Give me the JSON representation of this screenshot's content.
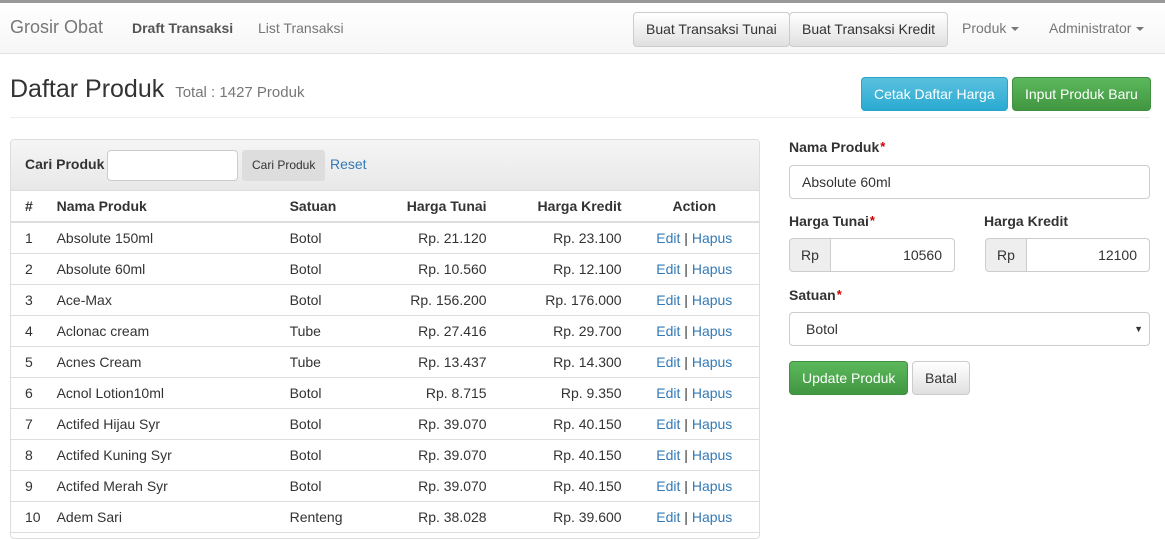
{
  "nav": {
    "brand": "Grosir Obat",
    "links": [
      "Draft Transaksi",
      "List Transaksi"
    ],
    "buttons": [
      "Buat Transaksi Tunai",
      "Buat Transaksi Kredit"
    ],
    "dropdowns": [
      "Produk",
      "Administrator"
    ]
  },
  "page": {
    "title": "Daftar Produk",
    "subtitle": "Total : 1427 Produk",
    "print_button": "Cetak Daftar Harga",
    "new_button": "Input Produk Baru"
  },
  "search": {
    "label": "Cari Produk",
    "value": "",
    "button": "Cari Produk",
    "reset": "Reset"
  },
  "table": {
    "headers": [
      "#",
      "Nama Produk",
      "Satuan",
      "Harga Tunai",
      "Harga Kredit",
      "Action"
    ],
    "edit_label": "Edit",
    "sep": "|",
    "delete_label": "Hapus",
    "rows": [
      [
        "1",
        "Absolute 150ml",
        "Botol",
        "Rp. 21.120",
        "Rp. 23.100"
      ],
      [
        "2",
        "Absolute 60ml",
        "Botol",
        "Rp. 10.560",
        "Rp. 12.100"
      ],
      [
        "3",
        "Ace-Max",
        "Botol",
        "Rp. 156.200",
        "Rp. 176.000"
      ],
      [
        "4",
        "Aclonac cream",
        "Tube",
        "Rp. 27.416",
        "Rp. 29.700"
      ],
      [
        "5",
        "Acnes Cream",
        "Tube",
        "Rp. 13.437",
        "Rp. 14.300"
      ],
      [
        "6",
        "Acnol Lotion10ml",
        "Botol",
        "Rp. 8.715",
        "Rp. 9.350"
      ],
      [
        "7",
        "Actifed Hijau Syr",
        "Botol",
        "Rp. 39.070",
        "Rp. 40.150"
      ],
      [
        "8",
        "Actifed Kuning Syr",
        "Botol",
        "Rp. 39.070",
        "Rp. 40.150"
      ],
      [
        "9",
        "Actifed Merah Syr",
        "Botol",
        "Rp. 39.070",
        "Rp. 40.150"
      ],
      [
        "10",
        "Adem Sari",
        "Renteng",
        "Rp. 38.028",
        "Rp. 39.600"
      ]
    ]
  },
  "form": {
    "name_label": "Nama Produk",
    "name_value": "Absolute 60ml",
    "required": "*",
    "cash_label": "Harga Tunai",
    "credit_label": "Harga Kredit",
    "currency": "Rp",
    "cash_value": "10560",
    "credit_value": "12100",
    "unit_label": "Satuan",
    "unit_value": "Botol",
    "update_button": "Update Produk",
    "cancel_button": "Batal"
  }
}
